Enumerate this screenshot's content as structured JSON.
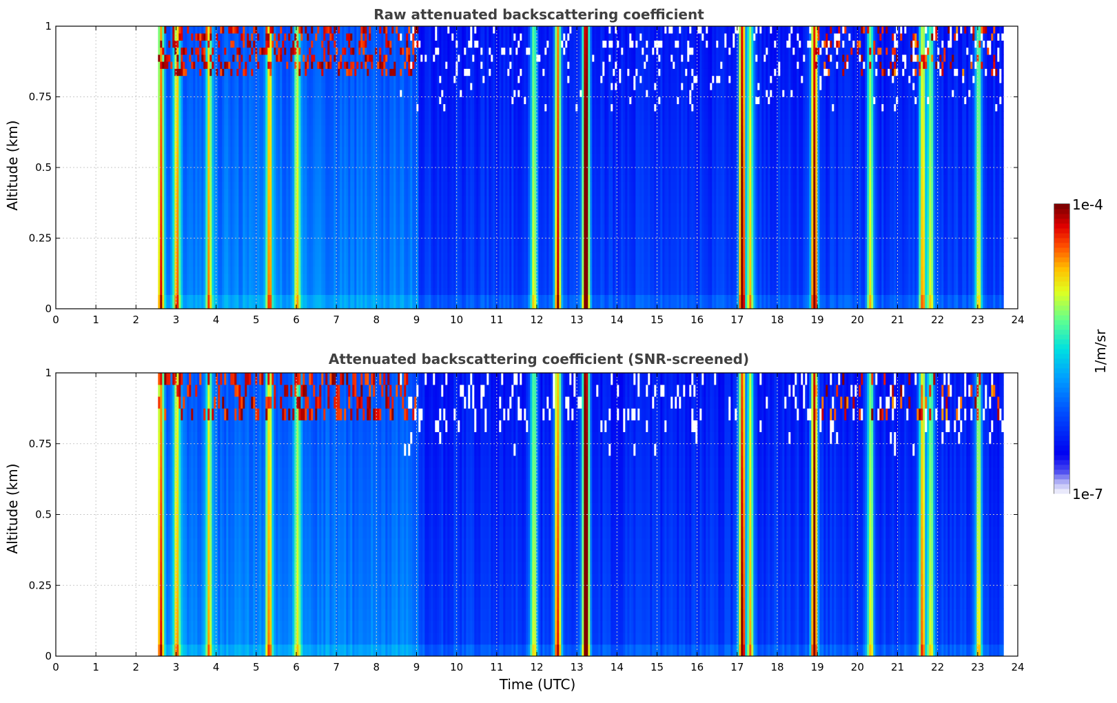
{
  "colorbar": {
    "max_label": "1e-4",
    "min_label": "1e-7",
    "unit_label": "1/m/sr"
  },
  "shared": {
    "xlabel": "Time (UTC)",
    "ylabel": "Altitude (km)"
  },
  "chart_data": [
    {
      "type": "heatmap",
      "title": "Raw attenuated backscattering coefficient",
      "xlabel": "",
      "ylabel": "Altitude (km)",
      "xlim": [
        0,
        24
      ],
      "ylim": [
        0,
        1
      ],
      "x_ticks": [
        "0",
        "1",
        "2",
        "3",
        "4",
        "5",
        "6",
        "7",
        "8",
        "9",
        "10",
        "11",
        "12",
        "13",
        "14",
        "15",
        "16",
        "17",
        "18",
        "19",
        "20",
        "21",
        "22",
        "23",
        "24"
      ],
      "y_ticks": [
        "0",
        "0.25",
        "0.5",
        "0.75",
        "1"
      ],
      "data_extent_x": [
        2.55,
        23.6
      ],
      "grid": true,
      "colormap": "jet",
      "color_scale": "log",
      "color_range": [
        "1e-7",
        "1e-4"
      ],
      "profile_features": [
        {
          "x": 2.6,
          "intensity": 0.55
        },
        {
          "x": 3.0,
          "intensity": 0.5
        },
        {
          "x": 3.8,
          "intensity": 0.45
        },
        {
          "x": 5.3,
          "intensity": 0.5
        },
        {
          "x": 6.0,
          "intensity": 0.4
        },
        {
          "x": 11.9,
          "intensity": 0.5
        },
        {
          "x": 12.5,
          "intensity": 0.7
        },
        {
          "x": 13.2,
          "intensity": 0.95
        },
        {
          "x": 17.1,
          "intensity": 0.8
        },
        {
          "x": 17.3,
          "intensity": 0.55
        },
        {
          "x": 18.9,
          "intensity": 0.85
        },
        {
          "x": 20.3,
          "intensity": 0.5
        },
        {
          "x": 21.6,
          "intensity": 0.6
        },
        {
          "x": 21.8,
          "intensity": 0.5
        },
        {
          "x": 23.0,
          "intensity": 0.5
        }
      ]
    },
    {
      "type": "heatmap",
      "title": "Attenuated backscattering coefficient (SNR-screened)",
      "xlabel": "Time (UTC)",
      "ylabel": "Altitude (km)",
      "xlim": [
        0,
        24
      ],
      "ylim": [
        0,
        1
      ],
      "x_ticks": [
        "0",
        "1",
        "2",
        "3",
        "4",
        "5",
        "6",
        "7",
        "8",
        "9",
        "10",
        "11",
        "12",
        "13",
        "14",
        "15",
        "16",
        "17",
        "18",
        "19",
        "20",
        "21",
        "22",
        "23",
        "24"
      ],
      "y_ticks": [
        "0",
        "0.25",
        "0.5",
        "0.75",
        "1"
      ],
      "data_extent_x": [
        2.55,
        23.6
      ],
      "grid": true,
      "colormap": "jet",
      "color_scale": "log",
      "color_range": [
        "1e-7",
        "1e-4"
      ],
      "profile_features": [
        {
          "x": 2.6,
          "intensity": 0.55
        },
        {
          "x": 3.0,
          "intensity": 0.5
        },
        {
          "x": 3.8,
          "intensity": 0.45
        },
        {
          "x": 5.3,
          "intensity": 0.5
        },
        {
          "x": 6.0,
          "intensity": 0.4
        },
        {
          "x": 11.9,
          "intensity": 0.5
        },
        {
          "x": 12.5,
          "intensity": 0.7
        },
        {
          "x": 13.2,
          "intensity": 0.95
        },
        {
          "x": 17.1,
          "intensity": 0.8
        },
        {
          "x": 17.3,
          "intensity": 0.55
        },
        {
          "x": 18.9,
          "intensity": 0.85
        },
        {
          "x": 20.3,
          "intensity": 0.5
        },
        {
          "x": 21.6,
          "intensity": 0.6
        },
        {
          "x": 21.8,
          "intensity": 0.5
        },
        {
          "x": 23.0,
          "intensity": 0.5
        }
      ]
    }
  ]
}
